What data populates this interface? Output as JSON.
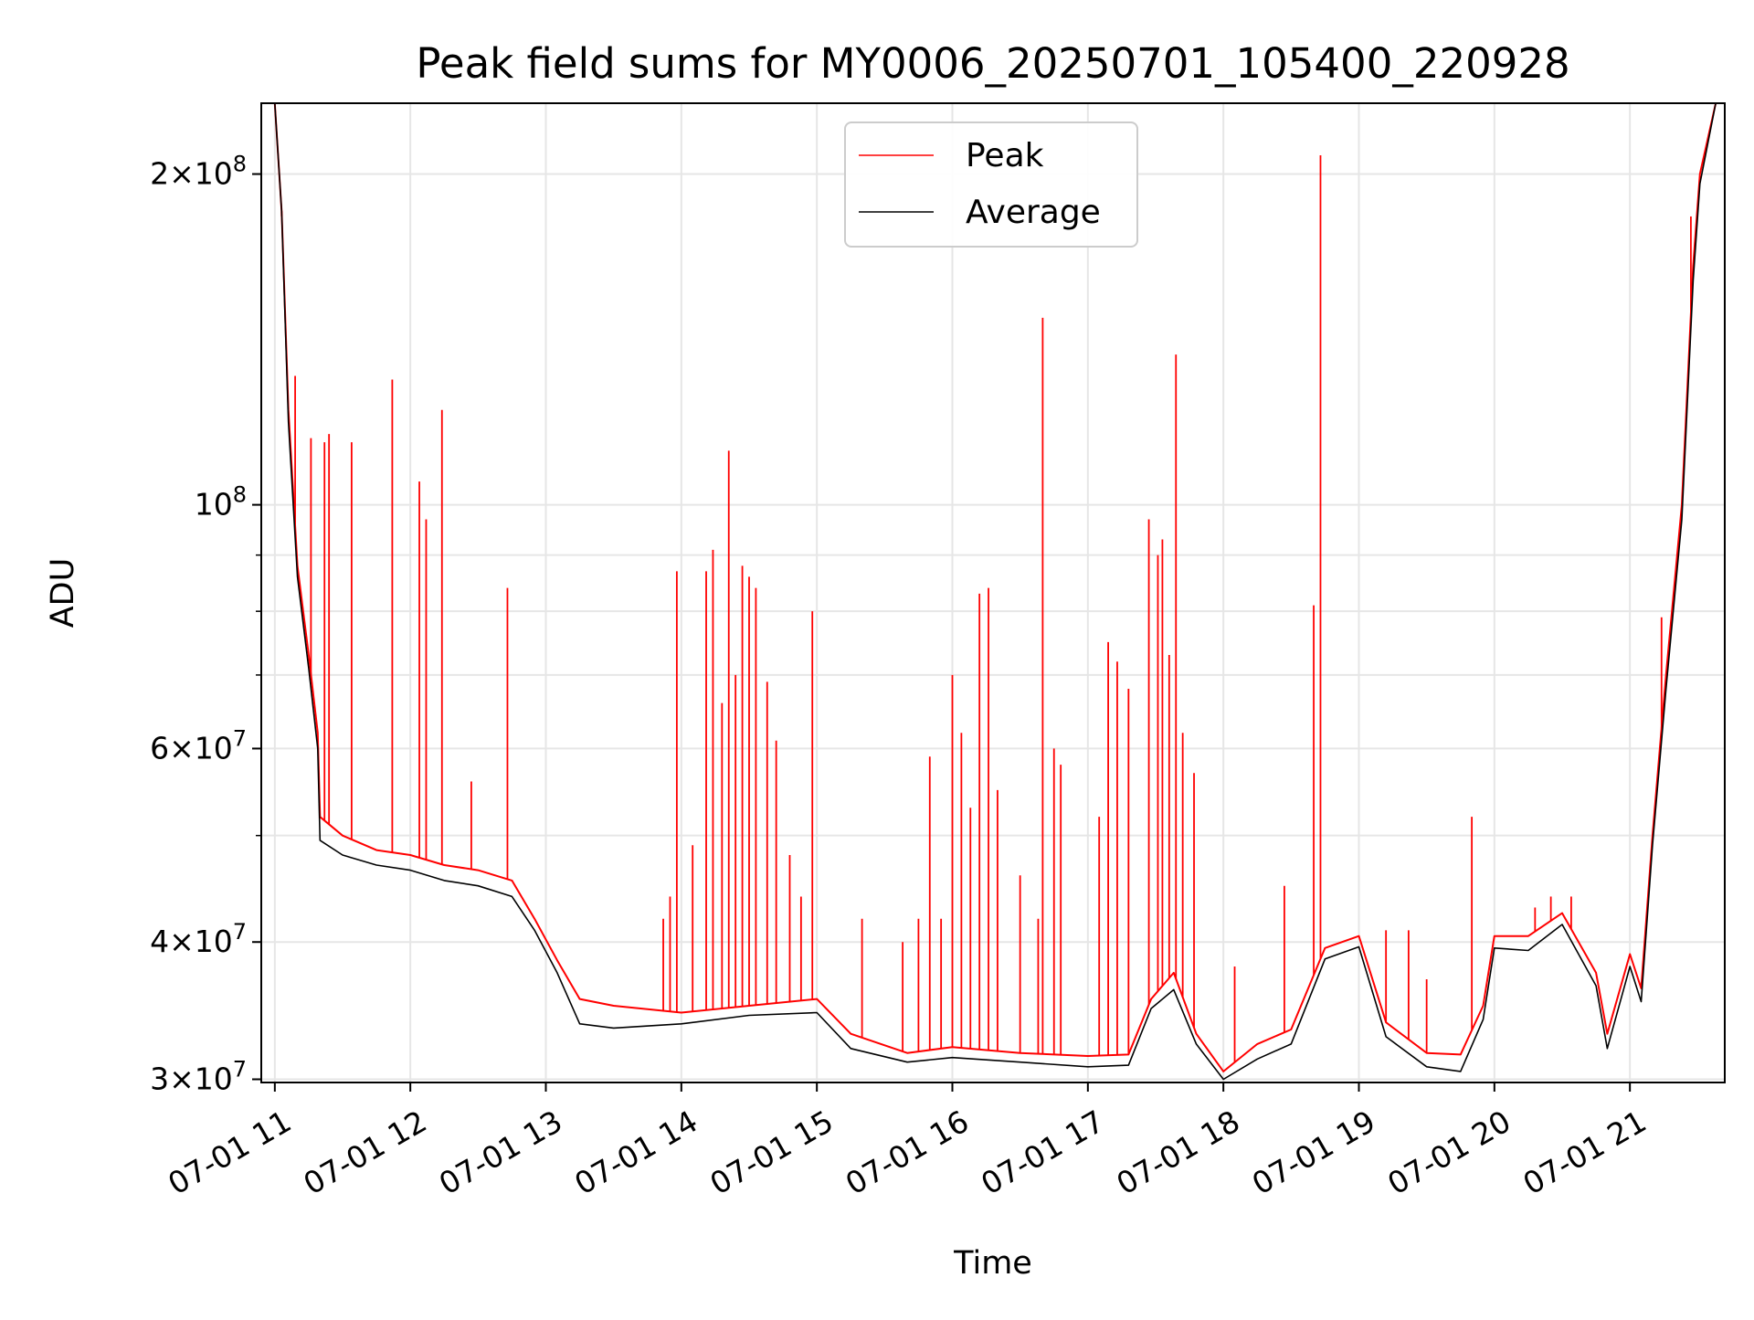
{
  "chart_data": {
    "type": "line",
    "title": "Peak field sums for MY0006_20250701_105400_220928",
    "xlabel": "Time",
    "ylabel": "ADU",
    "y_scale": "log",
    "ylim": [
      29800000,
      232000000
    ],
    "xlim": [
      "2025-07-01 10:54",
      "2025-07-01 21:42"
    ],
    "grid": true,
    "legend_position": "top-center",
    "x_tick_labels": [
      {
        "time": "2025-07-01 11:00",
        "label": "07-01 11"
      },
      {
        "time": "2025-07-01 12:00",
        "label": "07-01 12"
      },
      {
        "time": "2025-07-01 13:00",
        "label": "07-01 13"
      },
      {
        "time": "2025-07-01 14:00",
        "label": "07-01 14"
      },
      {
        "time": "2025-07-01 15:00",
        "label": "07-01 15"
      },
      {
        "time": "2025-07-01 16:00",
        "label": "07-01 16"
      },
      {
        "time": "2025-07-01 17:00",
        "label": "07-01 17"
      },
      {
        "time": "2025-07-01 18:00",
        "label": "07-01 18"
      },
      {
        "time": "2025-07-01 19:00",
        "label": "07-01 19"
      },
      {
        "time": "2025-07-01 20:00",
        "label": "07-01 20"
      },
      {
        "time": "2025-07-01 21:00",
        "label": "07-01 21"
      }
    ],
    "y_tick_labels": [
      {
        "value": 30000000,
        "mantissa": "3",
        "exponent": "7"
      },
      {
        "value": 40000000,
        "mantissa": "4",
        "exponent": "7"
      },
      {
        "value": 60000000,
        "mantissa": "6",
        "exponent": "7"
      },
      {
        "value": 100000000,
        "mantissa": "",
        "exponent": "8"
      },
      {
        "value": 200000000,
        "mantissa": "2",
        "exponent": "8"
      }
    ],
    "y_minor_ticks": [
      50000000,
      70000000,
      80000000,
      90000000
    ],
    "series": [
      {
        "name": "Peak",
        "color": "#ff0000",
        "points": [
          [
            "2025-07-01 11:00",
            232000000
          ],
          [
            "2025-07-01 11:03",
            185000000
          ],
          [
            "2025-07-01 11:06",
            122000000
          ],
          [
            "2025-07-01 11:10",
            88000000
          ],
          [
            "2025-07-01 11:15",
            73000000
          ],
          [
            "2025-07-01 11:19",
            62000000
          ],
          [
            "2025-07-01 11:20",
            52000000
          ],
          [
            "2025-07-01 11:30",
            50000000
          ],
          [
            "2025-07-01 11:45",
            48500000
          ],
          [
            "2025-07-01 12:00",
            48000000
          ],
          [
            "2025-07-01 12:15",
            47000000
          ],
          [
            "2025-07-01 12:30",
            46500000
          ],
          [
            "2025-07-01 12:45",
            45500000
          ],
          [
            "2025-07-01 12:55",
            42000000
          ],
          [
            "2025-07-01 13:05",
            38500000
          ],
          [
            "2025-07-01 13:15",
            35500000
          ],
          [
            "2025-07-01 13:30",
            35000000
          ],
          [
            "2025-07-01 14:00",
            34500000
          ],
          [
            "2025-07-01 14:30",
            35000000
          ],
          [
            "2025-07-01 15:00",
            35500000
          ],
          [
            "2025-07-01 15:15",
            33000000
          ],
          [
            "2025-07-01 15:40",
            31700000
          ],
          [
            "2025-07-01 16:00",
            32100000
          ],
          [
            "2025-07-01 16:30",
            31700000
          ],
          [
            "2025-07-01 17:00",
            31500000
          ],
          [
            "2025-07-01 17:18",
            31600000
          ],
          [
            "2025-07-01 17:28",
            35500000
          ],
          [
            "2025-07-01 17:38",
            37500000
          ],
          [
            "2025-07-01 17:48",
            33000000
          ],
          [
            "2025-07-01 18:00",
            30500000
          ],
          [
            "2025-07-01 18:15",
            32300000
          ],
          [
            "2025-07-01 18:30",
            33300000
          ],
          [
            "2025-07-01 18:45",
            39500000
          ],
          [
            "2025-07-01 19:00",
            40500000
          ],
          [
            "2025-07-01 19:12",
            33800000
          ],
          [
            "2025-07-01 19:30",
            31700000
          ],
          [
            "2025-07-01 19:45",
            31600000
          ],
          [
            "2025-07-01 19:55",
            35000000
          ],
          [
            "2025-07-01 20:00",
            40500000
          ],
          [
            "2025-07-01 20:15",
            40500000
          ],
          [
            "2025-07-01 20:30",
            42500000
          ],
          [
            "2025-07-01 20:45",
            37500000
          ],
          [
            "2025-07-01 20:50",
            33000000
          ],
          [
            "2025-07-01 21:00",
            39000000
          ],
          [
            "2025-07-01 21:05",
            36300000
          ],
          [
            "2025-07-01 21:10",
            50000000
          ],
          [
            "2025-07-01 21:16",
            70000000
          ],
          [
            "2025-07-01 21:23",
            100000000
          ],
          [
            "2025-07-01 21:28",
            165000000
          ],
          [
            "2025-07-01 21:31",
            200000000
          ],
          [
            "2025-07-01 21:38",
            232000000
          ]
        ],
        "spikes": [
          [
            "2025-07-01 11:03",
            183000000
          ],
          [
            "2025-07-01 11:09",
            131000000
          ],
          [
            "2025-07-01 11:16",
            115000000
          ],
          [
            "2025-07-01 11:22",
            114000000
          ],
          [
            "2025-07-01 11:24",
            116000000
          ],
          [
            "2025-07-01 11:34",
            114000000
          ],
          [
            "2025-07-01 11:52",
            130000000
          ],
          [
            "2025-07-01 12:04",
            105000000
          ],
          [
            "2025-07-01 12:07",
            97000000
          ],
          [
            "2025-07-01 12:14",
            122000000
          ],
          [
            "2025-07-01 12:27",
            56000000
          ],
          [
            "2025-07-01 12:43",
            84000000
          ],
          [
            "2025-07-01 13:52",
            42000000
          ],
          [
            "2025-07-01 13:55",
            44000000
          ],
          [
            "2025-07-01 13:58",
            87000000
          ],
          [
            "2025-07-01 14:05",
            49000000
          ],
          [
            "2025-07-01 14:11",
            87000000
          ],
          [
            "2025-07-01 14:14",
            91000000
          ],
          [
            "2025-07-01 14:18",
            66000000
          ],
          [
            "2025-07-01 14:21",
            112000000
          ],
          [
            "2025-07-01 14:24",
            70000000
          ],
          [
            "2025-07-01 14:27",
            88000000
          ],
          [
            "2025-07-01 14:30",
            86000000
          ],
          [
            "2025-07-01 14:33",
            84000000
          ],
          [
            "2025-07-01 14:38",
            69000000
          ],
          [
            "2025-07-01 14:42",
            61000000
          ],
          [
            "2025-07-01 14:48",
            48000000
          ],
          [
            "2025-07-01 14:53",
            44000000
          ],
          [
            "2025-07-01 14:58",
            80000000
          ],
          [
            "2025-07-01 15:20",
            42000000
          ],
          [
            "2025-07-01 15:38",
            40000000
          ],
          [
            "2025-07-01 15:45",
            42000000
          ],
          [
            "2025-07-01 15:50",
            59000000
          ],
          [
            "2025-07-01 15:55",
            42000000
          ],
          [
            "2025-07-01 16:00",
            70000000
          ],
          [
            "2025-07-01 16:04",
            62000000
          ],
          [
            "2025-07-01 16:08",
            53000000
          ],
          [
            "2025-07-01 16:12",
            83000000
          ],
          [
            "2025-07-01 16:16",
            84000000
          ],
          [
            "2025-07-01 16:20",
            55000000
          ],
          [
            "2025-07-01 16:30",
            46000000
          ],
          [
            "2025-07-01 16:38",
            42000000
          ],
          [
            "2025-07-01 16:40",
            148000000
          ],
          [
            "2025-07-01 16:45",
            60000000
          ],
          [
            "2025-07-01 16:48",
            58000000
          ],
          [
            "2025-07-01 17:05",
            52000000
          ],
          [
            "2025-07-01 17:09",
            75000000
          ],
          [
            "2025-07-01 17:13",
            72000000
          ],
          [
            "2025-07-01 17:18",
            68000000
          ],
          [
            "2025-07-01 17:27",
            97000000
          ],
          [
            "2025-07-01 17:31",
            90000000
          ],
          [
            "2025-07-01 17:33",
            93000000
          ],
          [
            "2025-07-01 17:36",
            73000000
          ],
          [
            "2025-07-01 17:39",
            137000000
          ],
          [
            "2025-07-01 17:42",
            62000000
          ],
          [
            "2025-07-01 17:47",
            57000000
          ],
          [
            "2025-07-01 18:05",
            38000000
          ],
          [
            "2025-07-01 18:27",
            45000000
          ],
          [
            "2025-07-01 18:40",
            81000000
          ],
          [
            "2025-07-01 18:43",
            208000000
          ],
          [
            "2025-07-01 19:12",
            41000000
          ],
          [
            "2025-07-01 19:22",
            41000000
          ],
          [
            "2025-07-01 19:30",
            37000000
          ],
          [
            "2025-07-01 19:50",
            52000000
          ],
          [
            "2025-07-01 20:18",
            43000000
          ],
          [
            "2025-07-01 20:25",
            44000000
          ],
          [
            "2025-07-01 20:34",
            44000000
          ],
          [
            "2025-07-01 21:14",
            79000000
          ],
          [
            "2025-07-01 21:27",
            183000000
          ]
        ]
      },
      {
        "name": "Average",
        "color": "#000000",
        "points": [
          [
            "2025-07-01 11:00",
            232000000
          ],
          [
            "2025-07-01 11:03",
            185000000
          ],
          [
            "2025-07-01 11:06",
            119000000
          ],
          [
            "2025-07-01 11:10",
            86000000
          ],
          [
            "2025-07-01 11:15",
            71000000
          ],
          [
            "2025-07-01 11:19",
            60000000
          ],
          [
            "2025-07-01 11:20",
            49500000
          ],
          [
            "2025-07-01 11:30",
            48000000
          ],
          [
            "2025-07-01 11:45",
            47000000
          ],
          [
            "2025-07-01 12:00",
            46500000
          ],
          [
            "2025-07-01 12:15",
            45500000
          ],
          [
            "2025-07-01 12:30",
            45000000
          ],
          [
            "2025-07-01 12:45",
            44000000
          ],
          [
            "2025-07-01 12:55",
            41000000
          ],
          [
            "2025-07-01 13:05",
            37500000
          ],
          [
            "2025-07-01 13:15",
            33700000
          ],
          [
            "2025-07-01 13:30",
            33400000
          ],
          [
            "2025-07-01 14:00",
            33700000
          ],
          [
            "2025-07-01 14:30",
            34300000
          ],
          [
            "2025-07-01 15:00",
            34500000
          ],
          [
            "2025-07-01 15:15",
            32000000
          ],
          [
            "2025-07-01 15:40",
            31100000
          ],
          [
            "2025-07-01 16:00",
            31400000
          ],
          [
            "2025-07-01 16:30",
            31100000
          ],
          [
            "2025-07-01 17:00",
            30800000
          ],
          [
            "2025-07-01 17:18",
            30900000
          ],
          [
            "2025-07-01 17:28",
            34800000
          ],
          [
            "2025-07-01 17:38",
            36200000
          ],
          [
            "2025-07-01 17:48",
            32300000
          ],
          [
            "2025-07-01 18:00",
            30000000
          ],
          [
            "2025-07-01 18:15",
            31300000
          ],
          [
            "2025-07-01 18:30",
            32300000
          ],
          [
            "2025-07-01 18:45",
            38600000
          ],
          [
            "2025-07-01 19:00",
            39600000
          ],
          [
            "2025-07-01 19:12",
            32800000
          ],
          [
            "2025-07-01 19:30",
            30800000
          ],
          [
            "2025-07-01 19:45",
            30500000
          ],
          [
            "2025-07-01 19:55",
            34000000
          ],
          [
            "2025-07-01 20:00",
            39500000
          ],
          [
            "2025-07-01 20:15",
            39300000
          ],
          [
            "2025-07-01 20:30",
            41500000
          ],
          [
            "2025-07-01 20:45",
            36500000
          ],
          [
            "2025-07-01 20:50",
            32000000
          ],
          [
            "2025-07-01 21:00",
            38000000
          ],
          [
            "2025-07-01 21:05",
            35300000
          ],
          [
            "2025-07-01 21:10",
            49000000
          ],
          [
            "2025-07-01 21:16",
            68000000
          ],
          [
            "2025-07-01 21:23",
            97000000
          ],
          [
            "2025-07-01 21:28",
            160000000
          ],
          [
            "2025-07-01 21:31",
            196000000
          ],
          [
            "2025-07-01 21:38",
            232000000
          ]
        ]
      }
    ]
  }
}
